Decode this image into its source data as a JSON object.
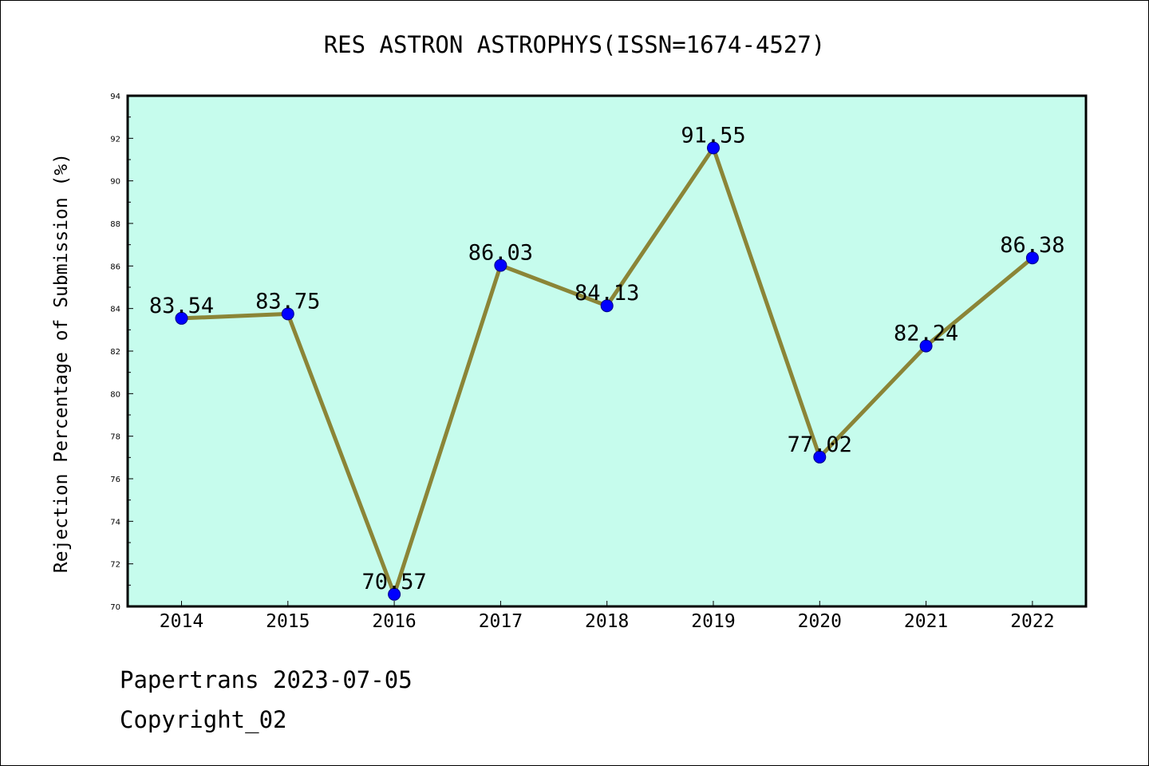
{
  "chart_data": {
    "type": "line",
    "title": "RES ASTRON ASTROPHYS(ISSN=1674-4527)",
    "xlabel": "",
    "ylabel": "Rejection Percentage of Submission (%)",
    "categories": [
      "2014",
      "2015",
      "2016",
      "2017",
      "2018",
      "2019",
      "2020",
      "2021",
      "2022"
    ],
    "series": [
      {
        "values": [
          83.54,
          83.75,
          70.57,
          86.03,
          84.13,
          91.55,
          77.02,
          82.24,
          86.38
        ],
        "labels": [
          "83.54",
          "83.75",
          "70.57",
          "86.03",
          "84.13",
          "91.55",
          "77.02",
          "82.24",
          "86.38"
        ]
      }
    ],
    "ylim": [
      70,
      94
    ],
    "yticks": [
      70,
      72,
      74,
      76,
      78,
      80,
      82,
      84,
      86,
      88,
      90,
      92,
      94
    ],
    "grid": false,
    "legend": "none",
    "colors": {
      "plot_background": "#c6fced",
      "line": "#8b8537",
      "marker": "#0000ff",
      "axes": "#000000"
    }
  },
  "footer": {
    "source": "Papertrans 2023-07-05",
    "copyright": "Copyright_02"
  }
}
